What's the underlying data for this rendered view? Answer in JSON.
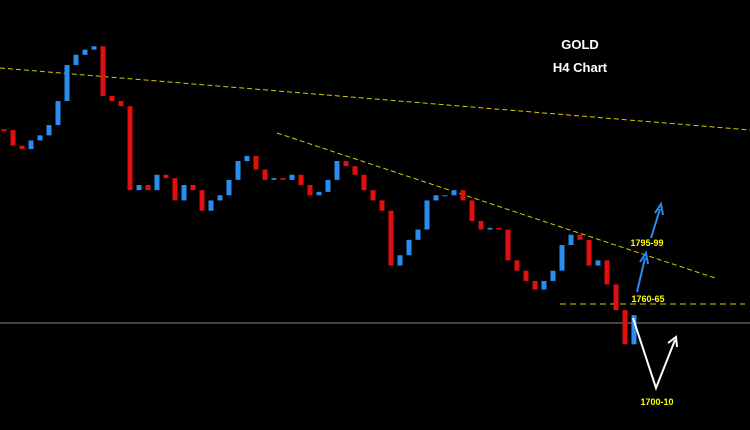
{
  "chart_data": {
    "type": "candlestick",
    "title": "GOLD",
    "subtitle": "H4 Chart",
    "close": [
      1863,
      1854,
      1852,
      1857,
      1860,
      1866,
      1880,
      1901,
      1907,
      1910,
      1912,
      1883,
      1880,
      1877,
      1828,
      1831,
      1828,
      1837,
      1835,
      1822,
      1831,
      1828,
      1816,
      1822,
      1825,
      1834,
      1845,
      1848,
      1840,
      1834,
      1835,
      1834,
      1837,
      1831,
      1825,
      1827,
      1834,
      1845,
      1842,
      1837,
      1828,
      1822,
      1816,
      1784,
      1790,
      1799,
      1805,
      1822,
      1825,
      1825,
      1828,
      1822,
      1810,
      1805,
      1806,
      1805,
      1787,
      1781,
      1775,
      1770,
      1775,
      1781,
      1796,
      1802,
      1799,
      1784,
      1787,
      1773,
      1758,
      1738,
      1755
    ],
    "ylim": [
      1688,
      1939
    ],
    "up_color": "#2a8cf0",
    "down_color": "#e01010",
    "annotations": [
      "1795-99",
      "1760-65",
      "1700-10"
    ]
  }
}
